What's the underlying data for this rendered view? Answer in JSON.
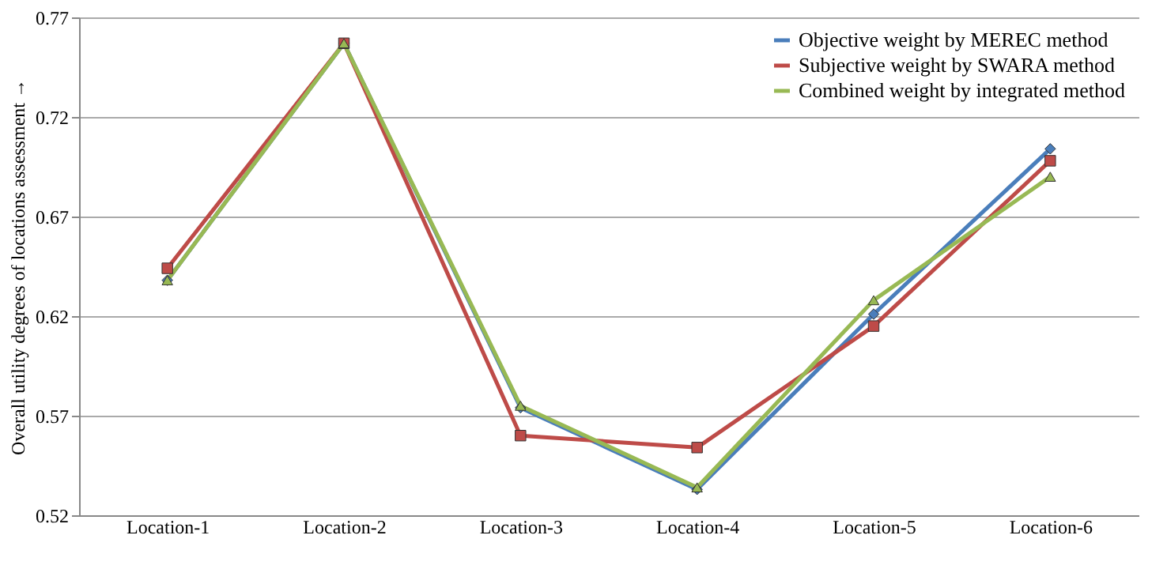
{
  "chart_data": {
    "type": "line",
    "ylabel": "Overall utility degrees of locations assessment →",
    "categories": [
      "Location-1",
      "Location-2",
      "Location-3",
      "Location-4",
      "Location-5",
      "Location-6"
    ],
    "series": [
      {
        "name": "Objective weight by MEREC method",
        "color": "#4a7ebb",
        "marker": "diamond",
        "values": [
          0.638,
          0.757,
          0.574,
          0.533,
          0.621,
          0.704
        ]
      },
      {
        "name": "Subjective weight by SWARA method",
        "color": "#be4b48",
        "marker": "square",
        "values": [
          0.644,
          0.757,
          0.56,
          0.554,
          0.615,
          0.698
        ]
      },
      {
        "name": "Combined weight by integrated method",
        "color": "#98b954",
        "marker": "triangle",
        "values": [
          0.638,
          0.757,
          0.575,
          0.534,
          0.628,
          0.69
        ]
      }
    ],
    "ylim": [
      0.52,
      0.77
    ],
    "yticks": [
      0.52,
      0.57,
      0.62,
      0.67,
      0.72,
      0.77
    ],
    "grid": "y",
    "legend": "top right",
    "line_style": "solid"
  }
}
